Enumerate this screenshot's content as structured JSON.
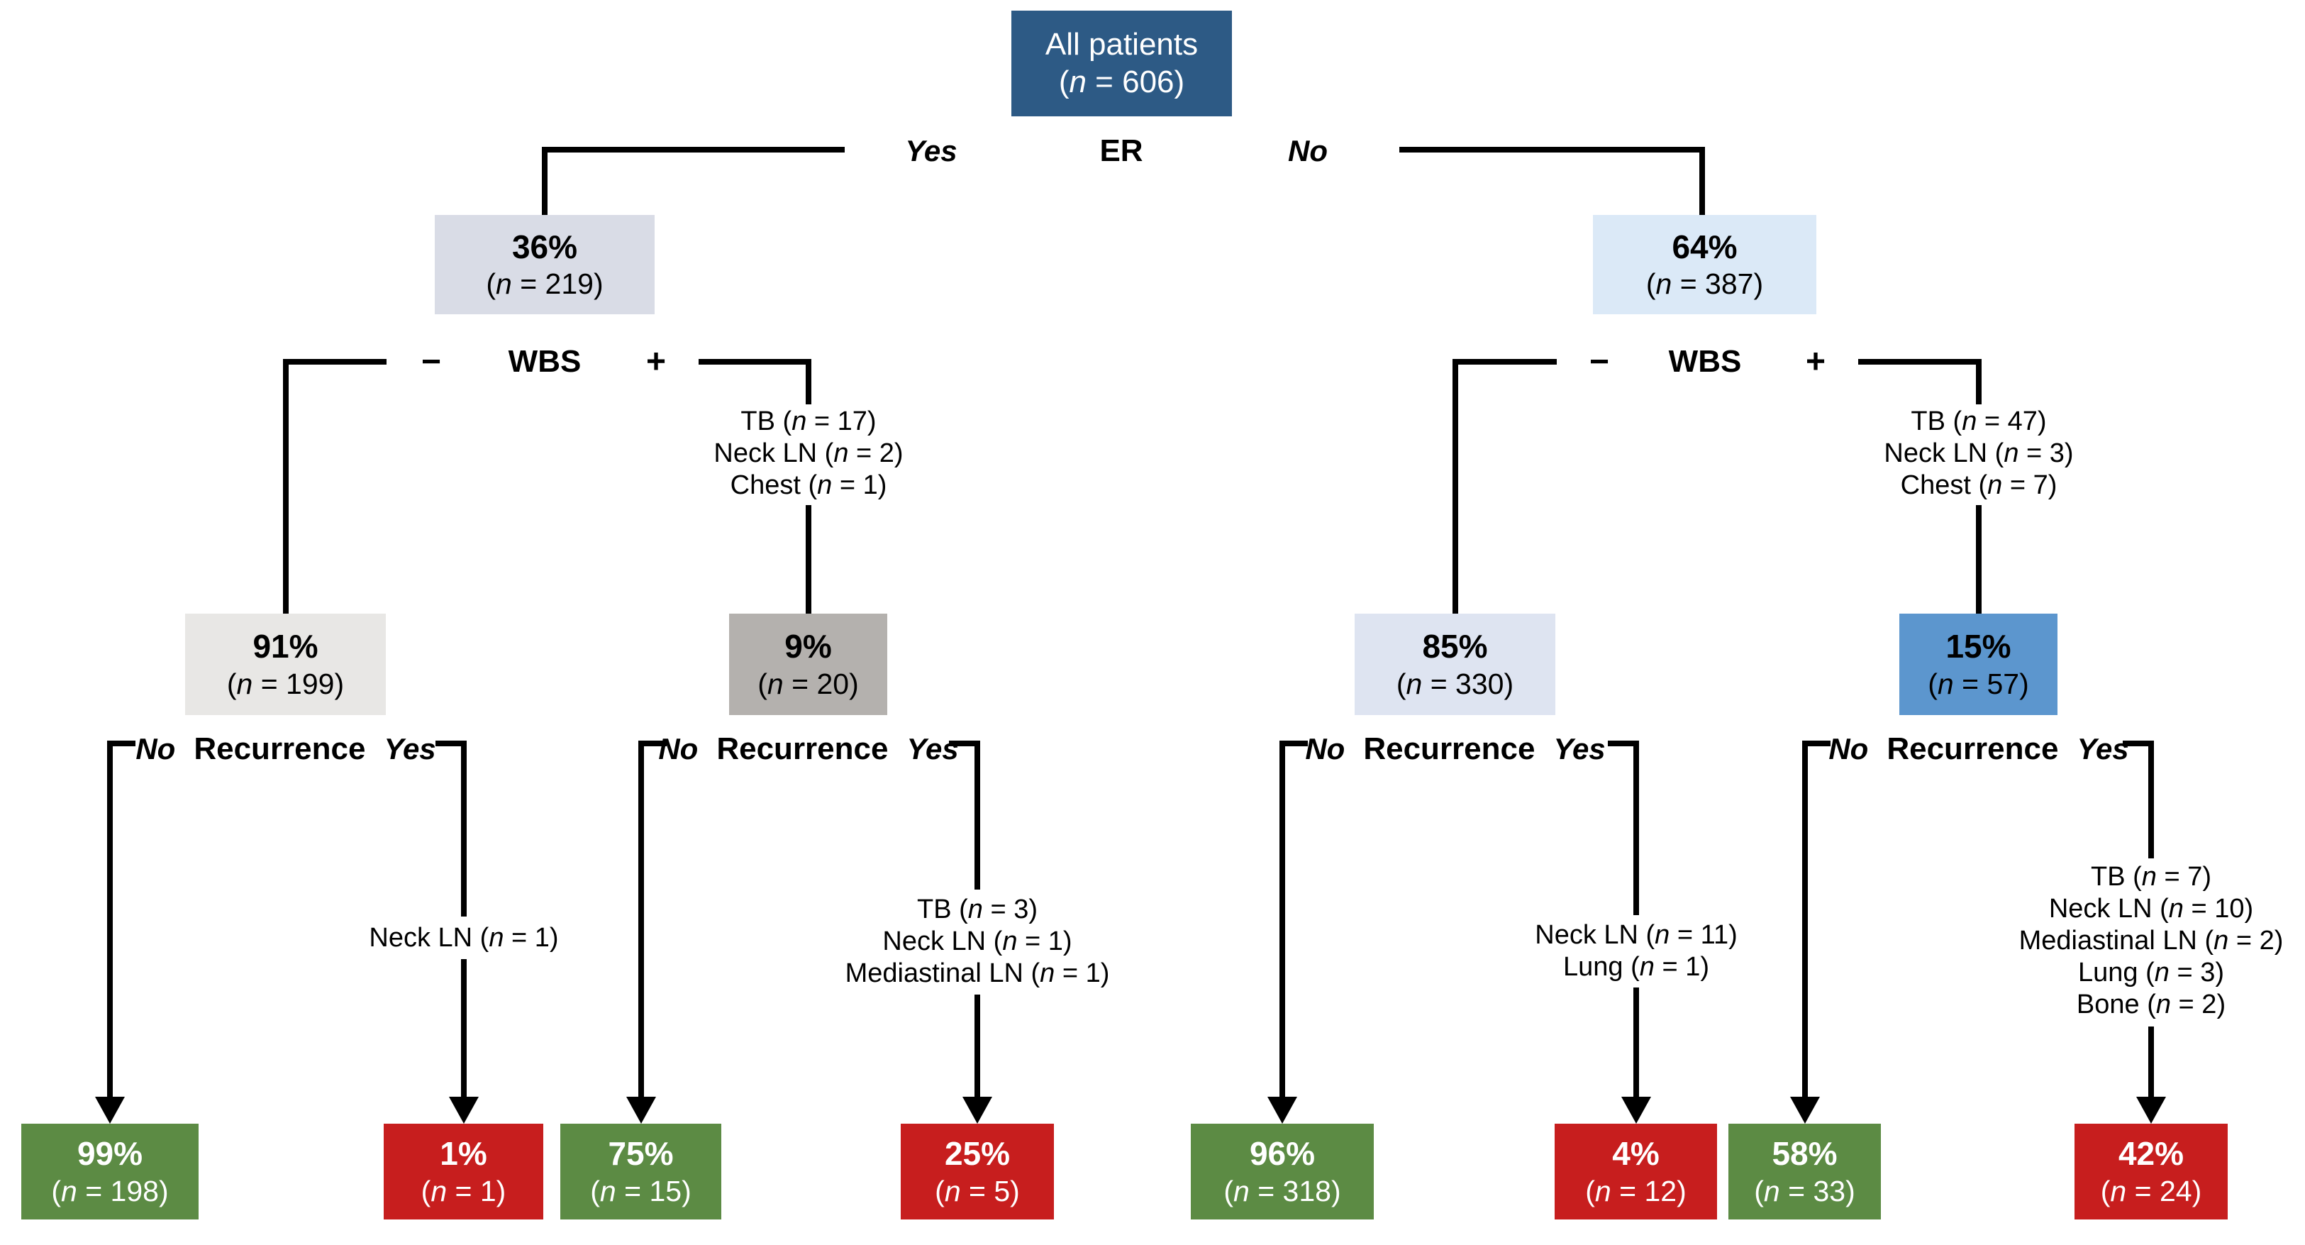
{
  "figure": {
    "root": {
      "title": "All patients",
      "n": "(n = 606)"
    },
    "er_split": {
      "label": "ER",
      "yes": "Yes",
      "no": "No"
    },
    "er_yes_node": {
      "pct": "36%",
      "n": "(n = 219)"
    },
    "er_no_node": {
      "pct": "64%",
      "n": "(n = 387)"
    },
    "wbs_left": {
      "label": "WBS",
      "minus": "−",
      "plus": "+"
    },
    "wbs_right": {
      "label": "WBS",
      "minus": "−",
      "plus": "+"
    },
    "wbs_left_pos_findings": [
      "TB (n = 17)",
      "Neck LN (n = 2)",
      "Chest (n = 1)"
    ],
    "wbs_right_pos_findings": [
      "TB (n = 47)",
      "Neck LN (n = 3)",
      "Chest (n = 7)"
    ],
    "nodes": {
      "er_yes_wbs_neg": {
        "pct": "91%",
        "n": "(n = 199)"
      },
      "er_yes_wbs_pos": {
        "pct": "9%",
        "n": "(n = 20)"
      },
      "er_no_wbs_neg": {
        "pct": "85%",
        "n": "(n = 330)"
      },
      "er_no_wbs_pos": {
        "pct": "15%",
        "n": "(n = 57)"
      }
    },
    "recurrence": {
      "label": "Recurrence",
      "no": "No",
      "yes": "Yes"
    },
    "recurrence_findings": {
      "g1": [
        "Neck LN (n = 1)"
      ],
      "g2": [
        "TB (n = 3)",
        "Neck LN (n = 1)",
        "Mediastinal LN (n = 1)"
      ],
      "g3": [
        "Neck LN (n = 11)",
        "Lung (n = 1)"
      ],
      "g4": [
        "TB (n = 7)",
        "Neck LN (n = 10)",
        "Mediastinal LN (n = 2)",
        "Lung (n = 3)",
        "Bone (n = 2)"
      ]
    },
    "outcomes": {
      "g1_no": {
        "pct": "99%",
        "n": "(n = 198)"
      },
      "g1_yes": {
        "pct": "1%",
        "n": "(n = 1)"
      },
      "g2_no": {
        "pct": "75%",
        "n": "(n = 15)"
      },
      "g2_yes": {
        "pct": "25%",
        "n": "(n = 5)"
      },
      "g3_no": {
        "pct": "96%",
        "n": "(n = 318)"
      },
      "g3_yes": {
        "pct": "4%",
        "n": "(n = 12)"
      },
      "g4_no": {
        "pct": "58%",
        "n": "(n = 33)"
      },
      "g4_yes": {
        "pct": "42%",
        "n": "(n = 24)"
      }
    },
    "colors": {
      "root": "#2D5A85",
      "er_yes": "#D9DCE6",
      "er_no": "#DBE9F7",
      "wbs_neg_left": "#E8E7E5",
      "wbs_pos_left": "#B4B1AE",
      "wbs_neg_right": "#DEE4F1",
      "wbs_pos_right": "#5C96CE",
      "no_recurrence_green": "#5C8B44",
      "recurrence_red": "#C71E1E",
      "line": "#000000"
    }
  }
}
